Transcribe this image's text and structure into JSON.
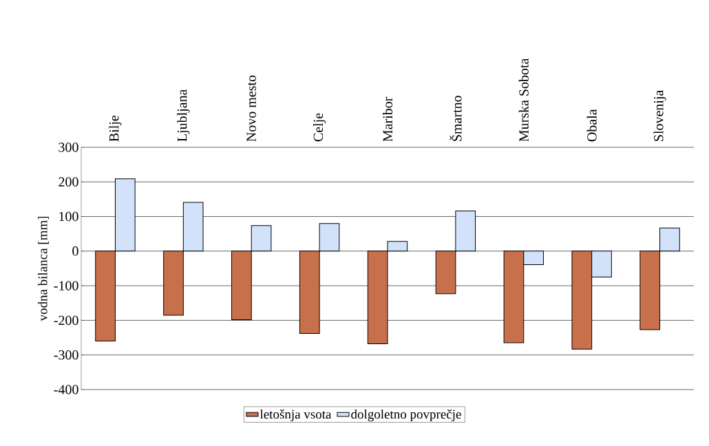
{
  "chart_data": {
    "type": "bar",
    "ylabel": "vodna bilanca [mm]",
    "categories": [
      "Bilje",
      "Ljubljana",
      "Novo mesto",
      "Celje",
      "Maribor",
      "Šmartno",
      "Murska Sobota",
      "Obala",
      "Slovenija"
    ],
    "series": [
      {
        "name": "letošnja vsota",
        "color": "#c8704c",
        "values": [
          -260,
          -185,
          -198,
          -238,
          -268,
          -123,
          -265,
          -283,
          -227
        ]
      },
      {
        "name": "dolgoletno povprečje",
        "color": "#d2e2fa",
        "values": [
          209,
          141,
          74,
          80,
          28,
          116,
          -39,
          -75,
          67
        ]
      }
    ],
    "ylim": [
      -400,
      300
    ],
    "yticks": [
      -400,
      -300,
      -200,
      -100,
      0,
      100,
      200,
      300
    ],
    "grid": "y",
    "legend": "bottom"
  }
}
